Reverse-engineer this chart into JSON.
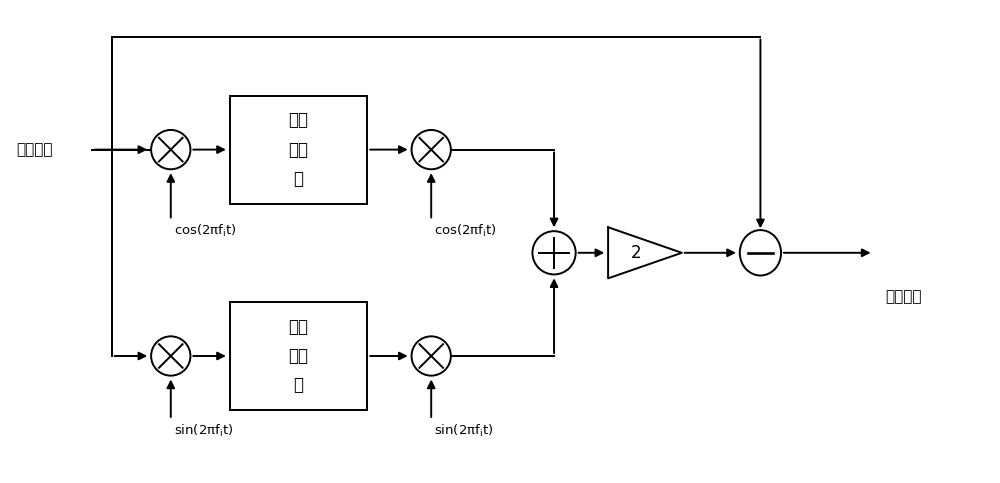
{
  "bg_color": "#ffffff",
  "line_color": "#000000",
  "input_label": "输入信号",
  "output_label": "输出信号",
  "lpf_label": "低通\n滤波\n器",
  "cos_label": "cos(2πfⁱt)",
  "sin_label": "sin(2πfⁱt)",
  "gain_label": "2",
  "minus_label": "−",
  "plus_label": "+"
}
